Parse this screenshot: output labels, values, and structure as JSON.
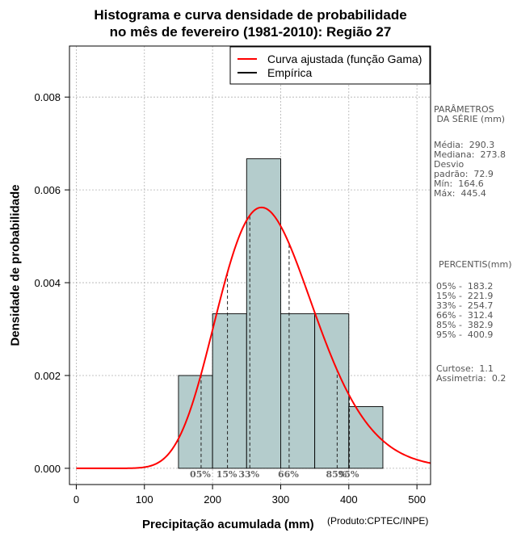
{
  "chart_data": {
    "type": "bar",
    "title": "Histograma e curva densidade de probabilidade",
    "subtitle": "no mês de fevereiro (1981-2010): Região 27",
    "xlabel": "Precipitação acumulada (mm)",
    "ylabel": "Densidade de probabilidade",
    "xlim": [
      -10,
      520
    ],
    "ylim": [
      -0.00035,
      0.0091
    ],
    "xticks": [
      0,
      100,
      200,
      300,
      400,
      500
    ],
    "yticks": [
      0.0,
      0.002,
      0.004,
      0.006,
      0.008
    ],
    "ytick_labels": [
      "0.000",
      "0.002",
      "0.004",
      "0.006",
      "0.008"
    ],
    "grid": true,
    "bins": [
      {
        "start": 150,
        "end": 200,
        "density": 0.002
      },
      {
        "start": 200,
        "end": 250,
        "density": 0.00333
      },
      {
        "start": 250,
        "end": 300,
        "density": 0.00667
      },
      {
        "start": 300,
        "end": 350,
        "density": 0.00333
      },
      {
        "start": 350,
        "end": 400,
        "density": 0.00333
      },
      {
        "start": 400,
        "end": 450,
        "density": 0.00133
      }
    ],
    "gamma_fit": {
      "name": "Curva ajustada (função Gama)",
      "shape": 15.85,
      "scale": 18.31,
      "color": "#ff0000"
    },
    "empirical": {
      "name": "Empírica",
      "color": "#000000"
    },
    "legend": [
      {
        "label": "Curva ajustada (função Gama)",
        "color": "#ff0000"
      },
      {
        "label": "Empírica",
        "color": "#000000"
      }
    ],
    "legend_position": "top-right",
    "bar_color": "#b4cccc",
    "percentile_lines": [
      {
        "label": "05%",
        "value": 183.2
      },
      {
        "label": "15%",
        "value": 221.9
      },
      {
        "label": "33%",
        "value": 254.7
      },
      {
        "label": "66%",
        "value": 312.4
      },
      {
        "label": "85%",
        "value": 382.9
      },
      {
        "label": "95%",
        "value": 400.9
      }
    ]
  },
  "side_panel": {
    "parametros_title": "PARÂMETROS\n DA SÉRIE (mm)",
    "parametros_body": "Média:  290.3\nMediana:  273.8\nDesvio\npadrão:  72.9\nMín:  164.6\nMáx:  445.4",
    "percentis_title": "PERCENTIS(mm)",
    "percentis_body": "05% -  183.2\n15% -  221.9\n33% -  254.7\n66% -  312.4\n85% -  382.9\n95% -  400.9",
    "stats_body": "Curtose:  1.1\nAssimetria:  0.2"
  },
  "footer": {
    "credit": "(Produto:CPTEC/INPE)"
  }
}
